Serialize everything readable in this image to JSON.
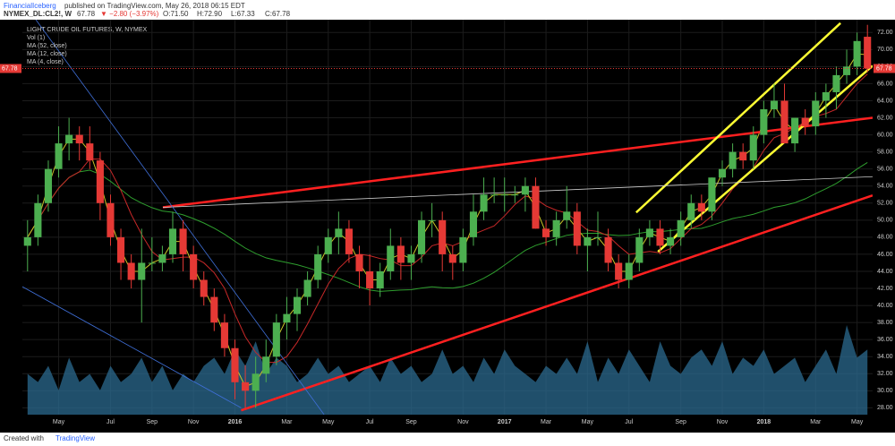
{
  "header": {
    "author": "FinancialIceberg",
    "published": "published on TradingView.com, May 26, 2018 06:15 EDT",
    "symbol": "NYMEX_DL:CL2!, W",
    "last": "67.78",
    "change": "▼ −2.80 (−3.97%)",
    "open": "O:71.50",
    "high": "H:72.90",
    "low": "L:67.33",
    "close": "C:67.78"
  },
  "footer": {
    "created": "Created with",
    "brand": "TradingView"
  },
  "chart_data": {
    "type": "candlestick",
    "title": "LIGHT CRUDE OIL FUTURES, W, NYMEX",
    "categories": [
      null,
      null,
      null,
      "May",
      null,
      null,
      null,
      null,
      "Jul",
      null,
      null,
      null,
      "Sep",
      null,
      null,
      null,
      "Nov",
      null,
      null,
      null,
      "2016",
      null,
      null,
      null,
      null,
      "Mar",
      null,
      null,
      null,
      "May",
      null,
      null,
      null,
      "Jul",
      null,
      null,
      null,
      "Sep",
      null,
      null,
      null,
      null,
      "Nov",
      null,
      null,
      null,
      "2017",
      null,
      null,
      null,
      "Mar",
      null,
      null,
      null,
      "May",
      null,
      null,
      null,
      "Jul",
      null,
      null,
      null,
      null,
      "Sep",
      null,
      null,
      null,
      "Nov",
      null,
      null,
      null,
      "2018",
      null,
      null,
      null,
      null,
      "Mar",
      null,
      null,
      null,
      "May",
      null
    ],
    "open": [
      47,
      48,
      52,
      56,
      59,
      60,
      59,
      57,
      52,
      48,
      45,
      43,
      45,
      45,
      46,
      49,
      46,
      43,
      41,
      38,
      35,
      31,
      30,
      32,
      34,
      38,
      39,
      41,
      43,
      46,
      48,
      49,
      46,
      44,
      42,
      44,
      47,
      45,
      46,
      50,
      50,
      46,
      45,
      48,
      51,
      53,
      53,
      53,
      53,
      54,
      49,
      48,
      50,
      51,
      47,
      48,
      48,
      45,
      43,
      45,
      48,
      49,
      47,
      48,
      50,
      52,
      51,
      55,
      56,
      58,
      57,
      60,
      63,
      64,
      59,
      62,
      61,
      64,
      65,
      67,
      68,
      71.5
    ],
    "high": [
      50,
      53,
      57,
      61,
      62,
      61,
      61,
      58,
      53,
      49,
      46,
      49,
      48,
      47,
      51,
      50,
      47,
      44,
      42,
      39,
      36,
      33,
      34,
      36,
      39,
      41,
      42,
      44,
      47,
      49,
      51,
      50,
      47,
      46,
      45,
      49,
      48,
      47,
      51,
      52,
      51,
      47,
      49,
      53,
      55,
      55,
      55,
      54,
      55,
      55,
      50,
      51,
      54,
      52,
      49,
      51,
      49,
      46,
      46,
      49,
      50,
      50,
      49,
      51,
      53,
      53,
      55,
      57,
      59,
      59,
      61,
      64,
      66,
      66,
      62,
      63,
      65,
      66,
      68,
      70,
      72,
      72.9
    ],
    "low": [
      44,
      47,
      51,
      55,
      57,
      57,
      56,
      50,
      47,
      43,
      42,
      38,
      44,
      44,
      45,
      44,
      42,
      40,
      37,
      34,
      29,
      28,
      28,
      31,
      33,
      36,
      37,
      40,
      42,
      45,
      46,
      45,
      42,
      40,
      41,
      43,
      43,
      43,
      45,
      48,
      44,
      43,
      44,
      47,
      50,
      52,
      51,
      52,
      51,
      49,
      47,
      47,
      49,
      46,
      44,
      47,
      44,
      42,
      42,
      44,
      47,
      46,
      46,
      47,
      49,
      50,
      50,
      54,
      55,
      56,
      56,
      59,
      62,
      59,
      58,
      60,
      60,
      62,
      63,
      66,
      67,
      67.33
    ],
    "close": [
      48,
      52,
      56,
      59,
      60,
      59,
      57,
      52,
      48,
      45,
      43,
      45,
      45,
      46,
      49,
      46,
      43,
      41,
      38,
      35,
      31,
      30,
      32,
      34,
      38,
      39,
      41,
      43,
      46,
      48,
      49,
      46,
      44,
      42,
      44,
      47,
      45,
      46,
      50,
      50,
      46,
      45,
      48,
      51,
      53,
      53,
      53,
      53,
      54,
      49,
      48,
      50,
      51,
      47,
      48,
      48,
      45,
      43,
      45,
      48,
      49,
      47,
      48,
      50,
      52,
      51,
      55,
      56,
      58,
      57,
      60,
      63,
      64,
      59,
      62,
      61,
      64,
      65,
      67,
      68,
      71,
      67.78
    ],
    "volume": [
      5,
      4,
      6,
      3,
      7,
      4,
      5,
      3,
      6,
      4,
      5,
      7,
      4,
      6,
      3,
      5,
      4,
      6,
      7,
      5,
      8,
      6,
      9,
      5,
      7,
      6,
      4,
      5,
      7,
      5,
      6,
      4,
      5,
      6,
      4,
      7,
      5,
      6,
      4,
      5,
      8,
      5,
      6,
      4,
      7,
      5,
      8,
      6,
      5,
      4,
      6,
      5,
      7,
      5,
      9,
      4,
      7,
      5,
      8,
      6,
      4,
      9,
      6,
      5,
      7,
      8,
      6,
      9,
      5,
      7,
      6,
      8,
      5,
      6,
      7,
      4,
      6,
      8,
      5,
      11,
      7,
      8
    ],
    "colors": {
      "up": "#4caf50",
      "down": "#e53935",
      "volume": "#2b6a8f"
    },
    "legend": [
      "Vol (1)"
    ],
    "series": [
      {
        "name": "MA (52, close)",
        "color": "#2e9e2e"
      },
      {
        "name": "MA (12, close)",
        "color": "#c62828"
      },
      {
        "name": "MA (4, close)",
        "color": "#c9c427"
      }
    ],
    "trendlines": [
      {
        "color": "#ff2020",
        "points": [
          [
            13.05,
            51.5
          ],
          [
            81.5,
            62.0
          ]
        ]
      },
      {
        "color": "#ff2020",
        "points": [
          [
            20.6,
            27.7
          ],
          [
            81.5,
            52.9
          ]
        ]
      },
      {
        "color": "#ffff33",
        "points": [
          [
            58.7,
            50.9
          ],
          [
            78.4,
            73.1
          ]
        ]
      },
      {
        "color": "#ffff33",
        "points": [
          [
            60.8,
            46.3
          ],
          [
            81.5,
            68.1
          ]
        ]
      },
      {
        "color": "#cccccc",
        "points": [
          [
            13.05,
            51.5
          ],
          [
            81.5,
            55.1
          ]
        ]
      },
      {
        "color": "#3f6fd8",
        "points": [
          [
            0.8,
            73.5
          ],
          [
            28.6,
            27.2
          ]
        ]
      },
      {
        "color": "#3f6fd8",
        "points": [
          [
            -0.5,
            42.2
          ],
          [
            20.6,
            28.0
          ]
        ]
      }
    ],
    "ylim": [
      27.2,
      73.5
    ],
    "yticks": [
      {
        "value": 28,
        "label": "28.00"
      },
      {
        "value": 30,
        "label": "30.00"
      },
      {
        "value": 32,
        "label": "32.00"
      },
      {
        "value": 34,
        "label": "34.00"
      },
      {
        "value": 36,
        "label": "36.00"
      },
      {
        "value": 38,
        "label": "38.00"
      },
      {
        "value": 40,
        "label": "40.00"
      },
      {
        "value": 42,
        "label": "42.00"
      },
      {
        "value": 44,
        "label": "44.00"
      },
      {
        "value": 46,
        "label": "46.00"
      },
      {
        "value": 48,
        "label": "48.00"
      },
      {
        "value": 50,
        "label": "50.00"
      },
      {
        "value": 52,
        "label": "52.00"
      },
      {
        "value": 54,
        "label": "54.00"
      },
      {
        "value": 56,
        "label": "56.00"
      },
      {
        "value": 58,
        "label": "58.00"
      },
      {
        "value": 60,
        "label": "60.00"
      },
      {
        "value": 62,
        "label": "62.00"
      },
      {
        "value": 64,
        "label": "64.00"
      },
      {
        "value": 66,
        "label": "66.00"
      },
      {
        "value": 68,
        "label": "68.00"
      },
      {
        "value": 70,
        "label": "70.00"
      },
      {
        "value": 72,
        "label": "72.00"
      }
    ],
    "grid": true
  }
}
